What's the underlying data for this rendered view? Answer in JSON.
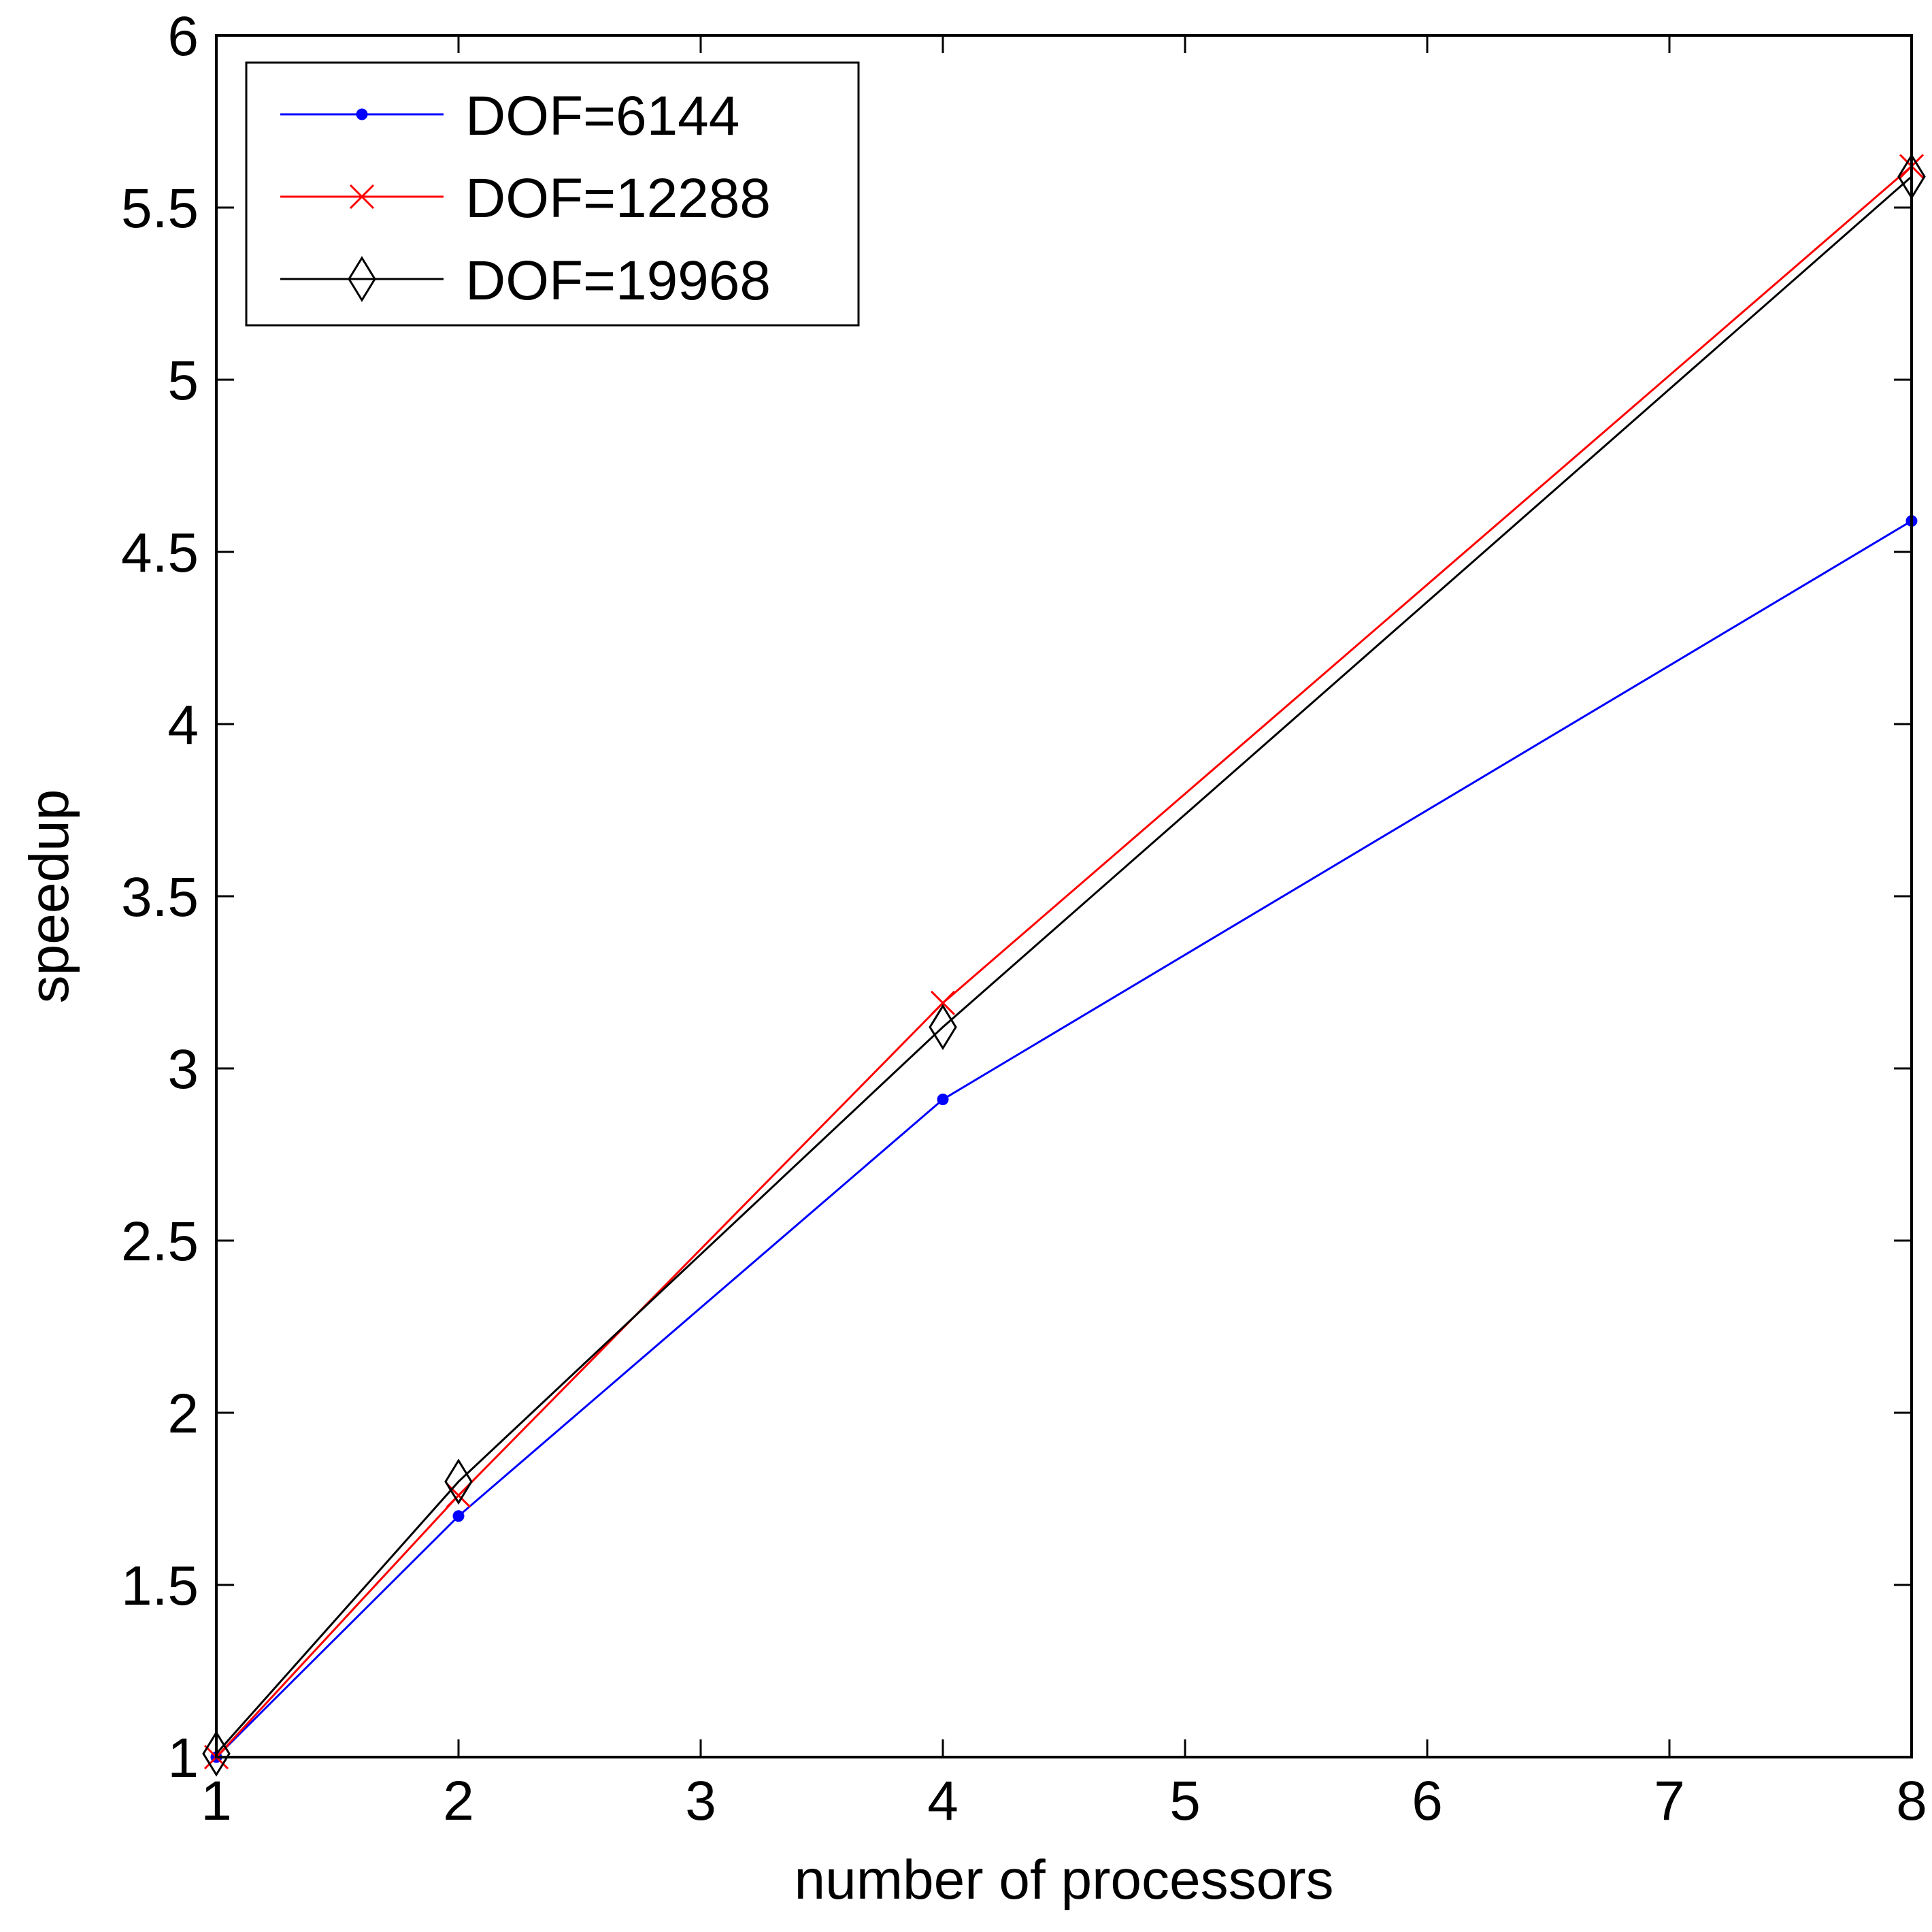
{
  "chart_data": {
    "type": "line",
    "xlabel": "number of processors",
    "ylabel": "speedup",
    "xlim": [
      1,
      8
    ],
    "ylim": [
      1,
      6
    ],
    "xticks": [
      1,
      2,
      3,
      4,
      5,
      6,
      7,
      8
    ],
    "yticks": [
      1,
      1.5,
      2,
      2.5,
      3,
      3.5,
      4,
      4.5,
      5,
      5.5,
      6
    ],
    "xtick_labels": [
      "1",
      "2",
      "3",
      "4",
      "5",
      "6",
      "7",
      "8"
    ],
    "ytick_labels": [
      "1",
      "1.5",
      "2",
      "2.5",
      "3",
      "3.5",
      "4",
      "4.5",
      "5",
      "5.5",
      "6"
    ],
    "grid": false,
    "legend_position": "top-left",
    "x": [
      1,
      2,
      4,
      8
    ],
    "series": [
      {
        "name": "DOF=6144",
        "color": "#0000ff",
        "marker": "dot",
        "values": [
          1.0,
          1.7,
          2.91,
          4.59
        ]
      },
      {
        "name": "DOF=12288",
        "color": "#ff0000",
        "marker": "x",
        "values": [
          1.0,
          1.76,
          3.19,
          5.62
        ]
      },
      {
        "name": "DOF=19968",
        "color": "#000000",
        "marker": "diamond",
        "values": [
          1.01,
          1.8,
          3.12,
          5.59
        ]
      }
    ]
  }
}
